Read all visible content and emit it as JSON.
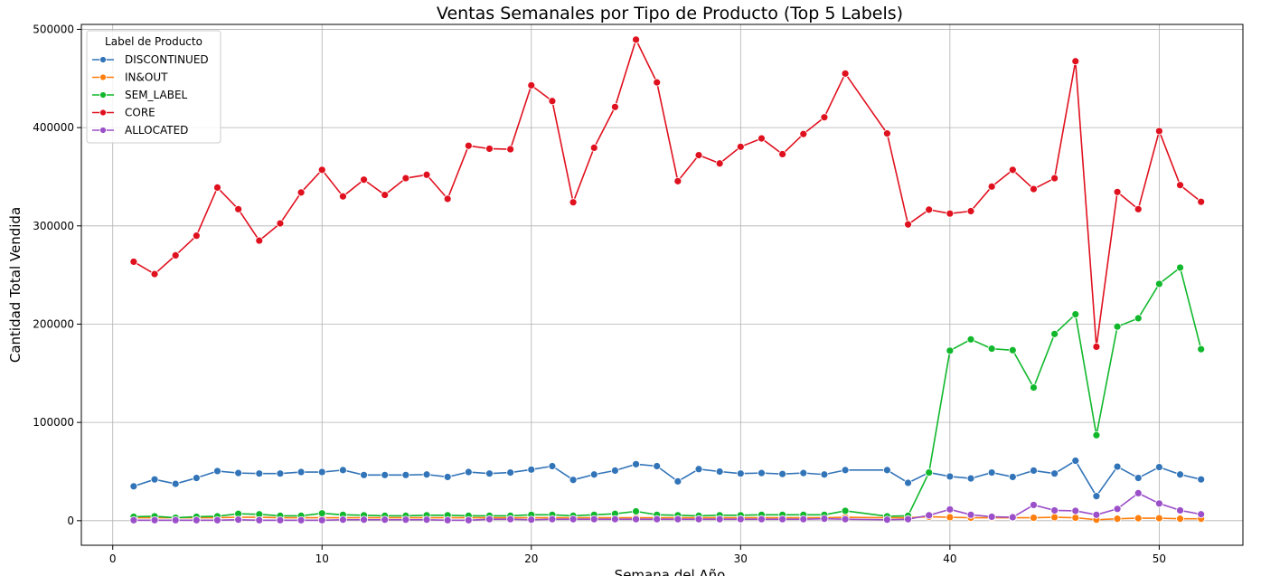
{
  "chart_data": {
    "type": "line",
    "title": "Ventas Semanales por Tipo de Producto (Top 5 Labels)",
    "xlabel": "Semana del Año",
    "ylabel": "Cantidad Total Vendida",
    "xlim": [
      -1.5,
      54
    ],
    "ylim": [
      -25000,
      505000
    ],
    "xticks": [
      0,
      10,
      20,
      30,
      40,
      50
    ],
    "yticks": [
      0,
      100000,
      200000,
      300000,
      400000,
      500000
    ],
    "grid": true,
    "legend": {
      "title": "Label de Producto",
      "position": "top-left"
    },
    "x": [
      1,
      2,
      3,
      4,
      5,
      6,
      7,
      8,
      9,
      10,
      11,
      12,
      13,
      14,
      15,
      16,
      17,
      18,
      19,
      20,
      21,
      22,
      23,
      24,
      25,
      26,
      27,
      28,
      29,
      30,
      31,
      32,
      33,
      34,
      35,
      37,
      38,
      39,
      40,
      41,
      42,
      43,
      44,
      45,
      46,
      47,
      48,
      49,
      50,
      51,
      52
    ],
    "series": [
      {
        "name": "DISCONTINUED",
        "color": "#3274b8",
        "values": [
          35000,
          42000,
          37500,
          43500,
          50500,
          48500,
          48000,
          48000,
          49500,
          49500,
          51500,
          46500,
          46500,
          46500,
          47000,
          44500,
          49500,
          48000,
          49000,
          52000,
          55500,
          41500,
          47000,
          51000,
          57500,
          55500,
          40000,
          52500,
          50000,
          48000,
          48500,
          47500,
          48500,
          47000,
          51500,
          51500,
          38500,
          49000,
          45000,
          43000,
          49000,
          44500,
          51000,
          48000,
          61000,
          25000,
          55000,
          43500,
          54500,
          47000,
          42000
        ]
      },
      {
        "name": "IN&OUT",
        "color": "#ff7f0e",
        "values": [
          3000,
          3000,
          3000,
          3000,
          3000,
          3500,
          3500,
          3000,
          3000,
          3000,
          3000,
          3000,
          3000,
          3000,
          3000,
          3000,
          3000,
          3000,
          3000,
          3000,
          3000,
          3000,
          3000,
          3000,
          3000,
          3000,
          3000,
          3000,
          3000,
          3000,
          3000,
          3000,
          3000,
          3000,
          3500,
          3000,
          3000,
          4000,
          3500,
          3000,
          3000,
          3000,
          3000,
          3500,
          3000,
          1000,
          2000,
          2500,
          2500,
          2000,
          2000
        ]
      },
      {
        "name": "SEM_LABEL",
        "color": "#11b82c",
        "values": [
          4000,
          4500,
          3000,
          4000,
          4500,
          7000,
          6500,
          5000,
          5000,
          7500,
          6000,
          5500,
          5000,
          5000,
          5500,
          5500,
          5000,
          5000,
          5000,
          6000,
          6000,
          5000,
          6000,
          7000,
          9500,
          6000,
          5500,
          5000,
          5500,
          5500,
          6000,
          6000,
          6000,
          6000,
          10000,
          4500,
          5000,
          49000,
          173000,
          184500,
          175000,
          173500,
          135500,
          190000,
          210000,
          87000,
          197500,
          206000,
          241000,
          257500,
          174500
        ]
      },
      {
        "name": "CORE",
        "color": "#e0111f",
        "values": [
          263500,
          251000,
          270000,
          290000,
          339000,
          317000,
          285000,
          302500,
          334000,
          357000,
          330000,
          347000,
          331500,
          348500,
          352000,
          327500,
          381500,
          378500,
          378000,
          443000,
          427000,
          324000,
          379500,
          421000,
          489500,
          446000,
          345500,
          372000,
          363500,
          380500,
          389000,
          373000,
          393500,
          410500,
          455000,
          394000,
          301500,
          316500,
          312500,
          315000,
          340000,
          357000,
          337500,
          348500,
          467500,
          177000,
          334500,
          317000,
          396500,
          341500,
          324500
        ]
      },
      {
        "name": "ALLOCATED",
        "color": "#9b4fc9",
        "values": [
          500,
          500,
          500,
          500,
          500,
          1000,
          500,
          500,
          500,
          500,
          1000,
          1000,
          1000,
          1000,
          1000,
          500,
          500,
          1500,
          1500,
          1000,
          1500,
          1500,
          1500,
          1500,
          1500,
          1500,
          1500,
          1500,
          1500,
          1500,
          1500,
          1500,
          1500,
          2000,
          1500,
          1000,
          1500,
          5500,
          11500,
          6000,
          4000,
          3500,
          16000,
          10500,
          10000,
          6000,
          12000,
          28000,
          17500,
          10500,
          6500
        ]
      }
    ]
  }
}
